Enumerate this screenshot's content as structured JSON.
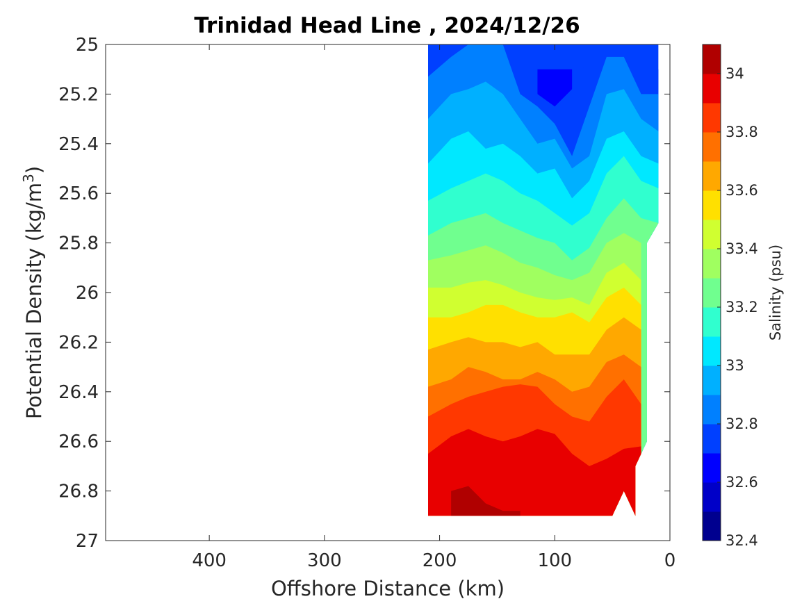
{
  "chart_data": {
    "type": "filled-contour",
    "title": "Trinidad Head Line , 2024/12/26",
    "xlabel": "Offshore Distance (km)",
    "ylabel_main": "Potential Density (kg/m",
    "ylabel_sup": "3",
    "ylabel_close": ")",
    "xlim": [
      490,
      0
    ],
    "ylim": [
      25,
      27
    ],
    "x_reversed": true,
    "y_reversed": true,
    "xticks": [
      400,
      300,
      200,
      100,
      0
    ],
    "xtick_labels": [
      "400",
      "300",
      "200",
      "100",
      "0"
    ],
    "yticks": [
      25,
      25.2,
      25.4,
      25.6,
      25.8,
      26,
      26.2,
      26.4,
      26.6,
      26.8,
      27
    ],
    "ytick_labels": [
      "25",
      "25.2",
      "25.4",
      "25.6",
      "25.8",
      "26",
      "26.2",
      "26.4",
      "26.6",
      "26.8",
      "27"
    ],
    "colorbar": {
      "label": "Salinity (psu)",
      "range": [
        32.4,
        34.1
      ],
      "ticks": [
        32.4,
        32.6,
        32.8,
        33,
        33.2,
        33.4,
        33.6,
        33.8,
        34
      ],
      "tick_labels": [
        "32.4",
        "32.6",
        "32.8",
        "33",
        "33.2",
        "33.4",
        "33.6",
        "33.8",
        "34"
      ],
      "level_step": 0.1,
      "colors": [
        "#00008f",
        "#0000c8",
        "#0000ff",
        "#0040ff",
        "#0080ff",
        "#00b0ff",
        "#00e8ff",
        "#30ffcf",
        "#70ff8f",
        "#a0ff60",
        "#d0ff30",
        "#ffe000",
        "#ffa800",
        "#ff7000",
        "#ff3800",
        "#e80000",
        "#b00000"
      ]
    },
    "data_extent": {
      "x": [
        10,
        210
      ],
      "density": [
        25,
        26.9
      ]
    },
    "contour_boundaries": {
      "x": [
        210,
        190,
        175,
        160,
        145,
        130,
        115,
        100,
        85,
        70,
        55,
        40,
        25,
        10
      ],
      "levels": [
        {
          "salinity": 32.6,
          "density": [
            null,
            null,
            null,
            null,
            null,
            null,
            25.1,
            25.1,
            25.1,
            null,
            null,
            null,
            null,
            null
          ]
        },
        {
          "salinity": 32.7,
          "density": [
            null,
            null,
            null,
            null,
            null,
            25.0,
            25.2,
            25.25,
            25.18,
            25.05,
            null,
            null,
            null,
            25.1
          ]
        },
        {
          "salinity": 32.8,
          "density": [
            25.13,
            25.05,
            25.0,
            null,
            25.0,
            25.2,
            25.25,
            25.32,
            25.45,
            25.25,
            25.05,
            25.05,
            25.2,
            25.2
          ]
        },
        {
          "salinity": 32.9,
          "density": [
            25.3,
            25.2,
            25.18,
            25.15,
            25.2,
            25.3,
            25.4,
            25.38,
            25.5,
            25.45,
            25.2,
            25.18,
            25.3,
            25.35
          ]
        },
        {
          "salinity": 33.0,
          "density": [
            25.48,
            25.38,
            25.35,
            25.42,
            25.4,
            25.45,
            25.52,
            25.5,
            25.62,
            25.55,
            25.38,
            25.35,
            25.45,
            25.48
          ]
        },
        {
          "salinity": 33.1,
          "density": [
            25.63,
            25.58,
            25.55,
            25.52,
            25.55,
            25.6,
            25.63,
            25.68,
            25.73,
            25.68,
            25.52,
            25.45,
            25.55,
            25.58
          ]
        },
        {
          "salinity": 33.2,
          "density": [
            25.77,
            25.72,
            25.7,
            25.68,
            25.72,
            25.75,
            25.78,
            25.8,
            25.87,
            25.82,
            25.7,
            25.62,
            25.7,
            25.72
          ]
        },
        {
          "salinity": 33.3,
          "density": [
            25.87,
            25.85,
            25.83,
            25.81,
            25.84,
            25.88,
            25.9,
            25.93,
            25.95,
            25.92,
            25.8,
            25.76,
            25.8,
            null
          ]
        },
        {
          "salinity": 33.4,
          "density": [
            25.98,
            25.98,
            25.96,
            25.95,
            25.97,
            26.0,
            26.02,
            26.03,
            26.02,
            26.05,
            25.92,
            25.88,
            25.95,
            null
          ]
        },
        {
          "salinity": 33.5,
          "density": [
            26.1,
            26.1,
            26.08,
            26.05,
            26.05,
            26.08,
            26.1,
            26.1,
            26.08,
            26.12,
            26.02,
            25.98,
            26.05,
            null
          ]
        },
        {
          "salinity": 33.6,
          "density": [
            26.23,
            26.2,
            26.18,
            26.2,
            26.2,
            26.22,
            26.2,
            26.25,
            26.25,
            26.25,
            26.15,
            26.1,
            26.15,
            null
          ]
        },
        {
          "salinity": 33.7,
          "density": [
            26.38,
            26.35,
            26.3,
            26.32,
            26.35,
            26.35,
            26.32,
            26.35,
            26.4,
            26.38,
            26.28,
            26.25,
            26.3,
            null
          ]
        },
        {
          "salinity": 33.8,
          "density": [
            26.5,
            26.45,
            26.42,
            26.4,
            26.38,
            26.37,
            26.38,
            26.45,
            26.5,
            26.52,
            26.42,
            26.35,
            26.45,
            null
          ]
        },
        {
          "salinity": 33.9,
          "density": [
            26.65,
            26.58,
            26.55,
            26.58,
            26.6,
            26.58,
            26.55,
            26.57,
            26.65,
            26.7,
            26.67,
            26.63,
            26.62,
            null
          ]
        },
        {
          "salinity": 34.0,
          "density": [
            null,
            26.8,
            26.78,
            26.85,
            26.88,
            26.88,
            null,
            null,
            null,
            null,
            null,
            null,
            null,
            null
          ]
        }
      ]
    }
  }
}
